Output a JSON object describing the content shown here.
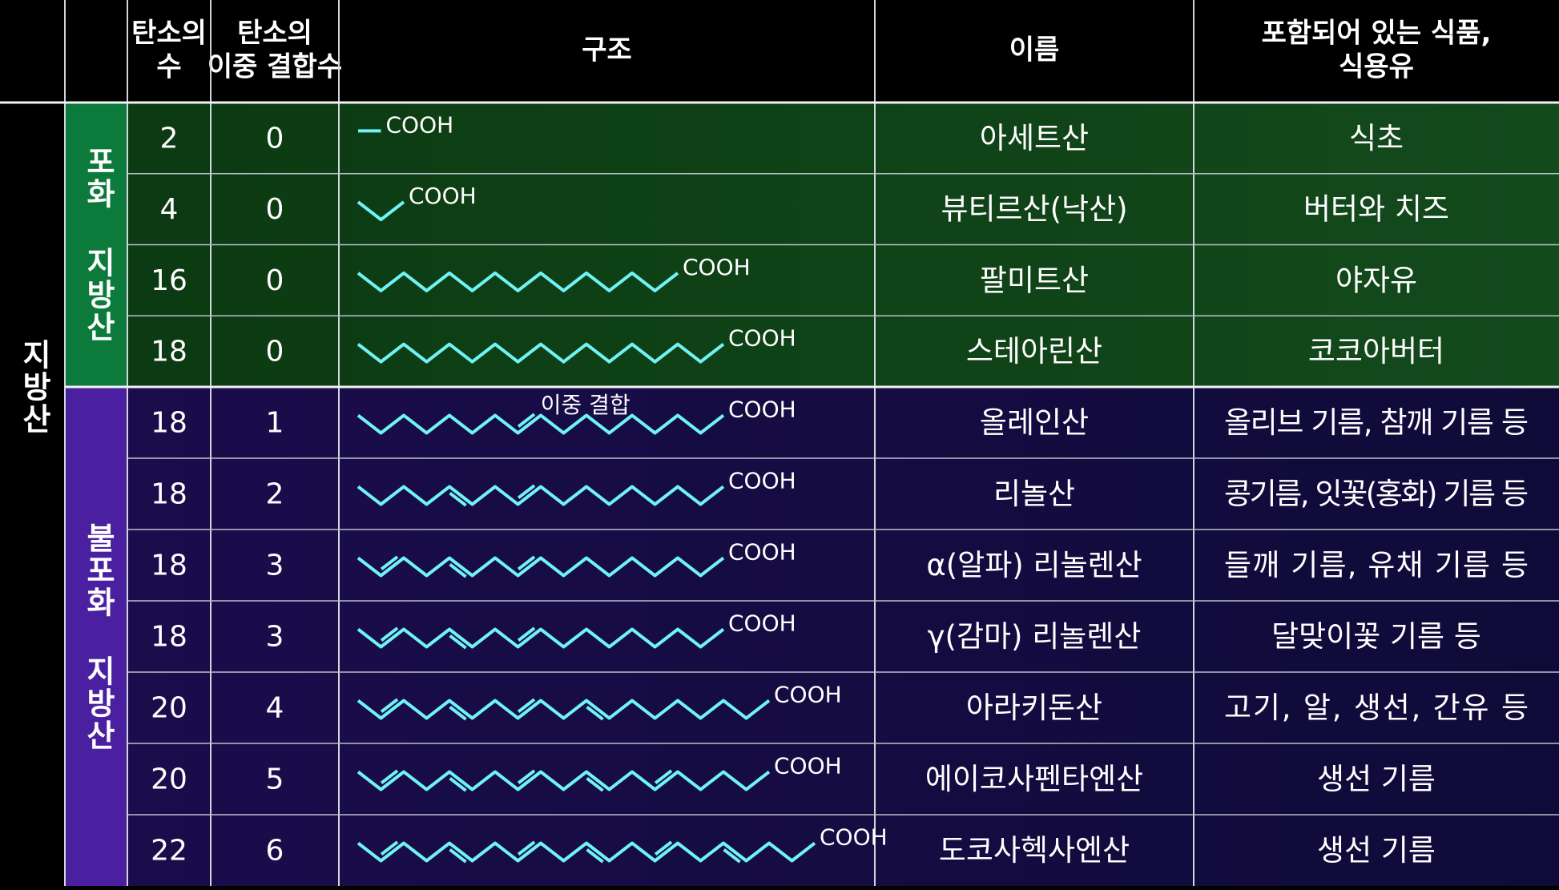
{
  "header": {
    "columns": [
      [
        "탄소의",
        "수"
      ],
      [
        "탄소의",
        "이중 결합수"
      ],
      [
        "구조"
      ],
      [
        "이름"
      ],
      [
        "포함되어 있는 식품,",
        "식용유"
      ]
    ]
  },
  "groups": {
    "fatty_acid": "지방산",
    "saturated": "포화 지방산",
    "unsaturated": "불포화 지방산"
  },
  "table": {
    "rows": [
      {
        "carbons": 2,
        "double_bonds": 0,
        "structure_label": "COOH",
        "name": "아세트산",
        "foods": "식초"
      },
      {
        "carbons": 4,
        "double_bonds": 0,
        "structure_label": "COOH",
        "name": "뷰티르산(낙산)",
        "foods": "버터와 치즈"
      },
      {
        "carbons": 16,
        "double_bonds": 0,
        "structure_label": "COOH",
        "name": "팔미트산",
        "foods": "야자유"
      },
      {
        "carbons": 18,
        "double_bonds": 0,
        "structure_label": "COOH",
        "name": "스테아린산",
        "foods": "코코아버터"
      },
      {
        "carbons": 18,
        "double_bonds": 1,
        "structure_label": "COOH",
        "annotation": "이중 결합",
        "name": "올레인산",
        "foods": "올리브 기름, 참깨 기름 등"
      },
      {
        "carbons": 18,
        "double_bonds": 2,
        "structure_label": "COOH",
        "name": "리놀산",
        "foods": "콩기름, 잇꽃(홍화) 기름 등"
      },
      {
        "carbons": 18,
        "double_bonds": 3,
        "structure_label": "COOH",
        "name": "α(알파) 리놀렌산",
        "foods": "들깨 기름, 유채 기름 등"
      },
      {
        "carbons": 18,
        "double_bonds": 3,
        "structure_label": "COOH",
        "name": "γ(감마) 리놀렌산",
        "foods": "달맞이꽃 기름 등"
      },
      {
        "carbons": 20,
        "double_bonds": 4,
        "structure_label": "COOH",
        "name": "아라키돈산",
        "foods": "고기, 알, 생선, 간유 등"
      },
      {
        "carbons": 20,
        "double_bonds": 5,
        "structure_label": "COOH",
        "name": "에이코사펜타엔산",
        "foods": "생선 기름"
      },
      {
        "carbons": 22,
        "double_bonds": 6,
        "structure_label": "COOH",
        "name": "도코사헥사엔산",
        "foods": "생선 기름"
      }
    ]
  }
}
